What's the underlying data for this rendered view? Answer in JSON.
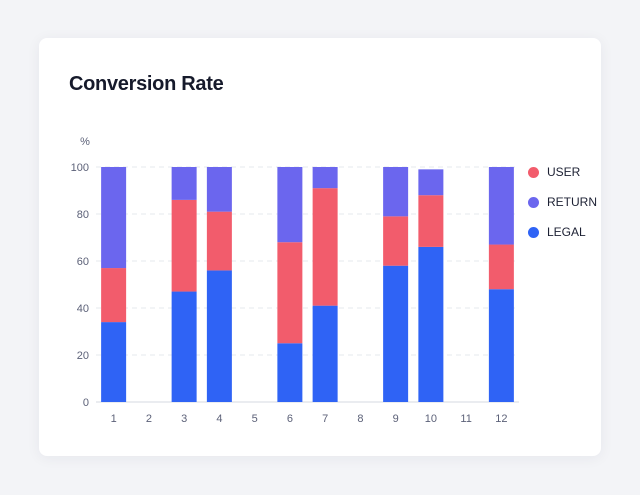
{
  "title": "Conversion Rate",
  "colors": {
    "USER": "#f25c6c",
    "RETURN": "#6b66ee",
    "LEGAL": "#2f63f5",
    "grid": "#e6e8ee",
    "axis": "#d6d9e2"
  },
  "legend": [
    {
      "label": "USER",
      "color": "#f25c6c"
    },
    {
      "label": "RETURN",
      "color": "#6b66ee"
    },
    {
      "label": "LEGAL",
      "color": "#2f63f5"
    }
  ],
  "chart_data": {
    "type": "bar",
    "stacked": true,
    "y_unit": "%",
    "ylim": [
      0,
      100
    ],
    "yticks": [
      0,
      20,
      40,
      60,
      80,
      100
    ],
    "categories": [
      "1",
      "2",
      "3",
      "4",
      "5",
      "6",
      "7",
      "8",
      "9",
      "10",
      "11",
      "12"
    ],
    "series": [
      {
        "name": "LEGAL",
        "values": [
          34,
          null,
          47,
          56,
          null,
          25,
          41,
          null,
          58,
          66,
          null,
          48
        ]
      },
      {
        "name": "USER",
        "values": [
          23,
          null,
          39,
          25,
          null,
          43,
          50,
          null,
          21,
          22,
          null,
          19
        ]
      },
      {
        "name": "RETURN",
        "values": [
          43,
          null,
          14,
          19,
          null,
          32,
          9,
          null,
          21,
          11,
          null,
          33
        ]
      }
    ],
    "grid": true,
    "legend_position": "right"
  }
}
